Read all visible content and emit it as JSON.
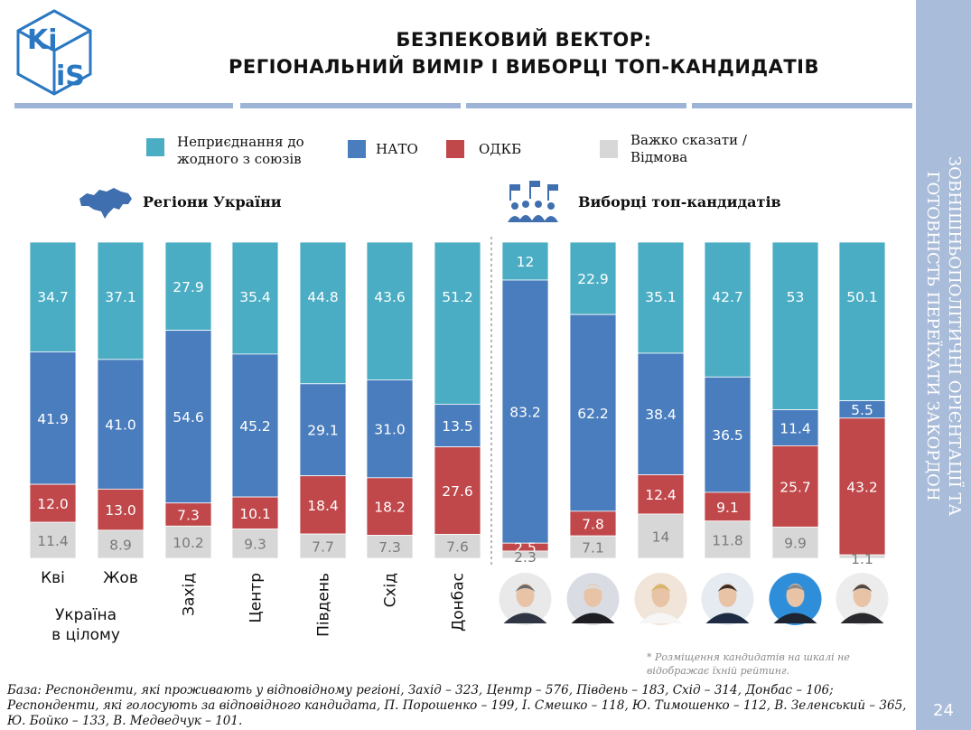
{
  "header": {
    "title_line1": "БЕЗПЕКОВИЙ ВЕКТОР:",
    "title_line2": "РЕГІОНАЛЬНИЙ ВИМІР І ВИБОРЦІ ТОП-КАНДИДАТІВ",
    "logo_text": "KIIS"
  },
  "sidebar": {
    "line1": "ЗОВНІШНЬОПОЛІТИЧНІ ОРІЄНТАЦІЇ ТА",
    "line2": "ГОТОВНІСТЬ ПЕРЕЇХАТИ ЗАКОРДОН",
    "page_number": "24"
  },
  "legend": {
    "none": "Неприєднання до\nжодного з союзів",
    "nato": "НАТО",
    "odkb": "ОДКБ",
    "dk": "Важко сказати /\nВідмова"
  },
  "sections": {
    "regions": "Регіони України",
    "voters": "Виборці топ-кандидатів"
  },
  "colors": {
    "none": "#4badc3",
    "nato": "#4a7dbd",
    "odkb": "#c0474a",
    "dk": "#d7d7d7",
    "sidebar": "#a9bcd9"
  },
  "chart_data": {
    "type": "bar",
    "stacked": true,
    "normalized_to": 100,
    "categories": [
      "Кві",
      "Жов",
      "Захід",
      "Центр",
      "Південь",
      "Схід",
      "Донбас",
      "",
      "",
      "",
      "",
      "",
      ""
    ],
    "group_label": "Україна в цілому",
    "series": [
      {
        "name": "Неприєднання до жодного з союзів",
        "values": [
          34.7,
          37.1,
          27.9,
          35.4,
          44.8,
          43.6,
          51.2,
          12,
          22.9,
          35.1,
          42.7,
          53,
          50.1
        ]
      },
      {
        "name": "НАТО",
        "values": [
          41.9,
          41.0,
          54.6,
          45.2,
          29.1,
          31.0,
          13.5,
          83.2,
          62.2,
          38.4,
          36.5,
          11.4,
          5.5
        ]
      },
      {
        "name": "ОДКБ",
        "values": [
          12.0,
          13.0,
          7.3,
          10.1,
          18.4,
          18.2,
          27.6,
          2.5,
          7.8,
          12.4,
          9.1,
          25.7,
          43.2
        ]
      },
      {
        "name": "Важко сказати / Відмова",
        "values": [
          11.4,
          8.9,
          10.2,
          9.3,
          7.7,
          7.3,
          7.6,
          2.3,
          7.1,
          14,
          11.8,
          9.9,
          1.1
        ]
      }
    ],
    "labels": [
      [
        "34.7",
        "41.9",
        "12.0",
        "11.4"
      ],
      [
        "37.1",
        "41.0",
        "13.0",
        "8.9"
      ],
      [
        "27.9",
        "54.6",
        "7.3",
        "10.2"
      ],
      [
        "35.4",
        "45.2",
        "10.1",
        "9.3"
      ],
      [
        "44.8",
        "29.1",
        "18.4",
        "7.7"
      ],
      [
        "43.6",
        "31.0",
        "18.2",
        "7.3"
      ],
      [
        "51.2",
        "13.5",
        "27.6",
        "7.6"
      ],
      [
        "12",
        "83.2",
        "2.5",
        "2.3"
      ],
      [
        "22.9",
        "62.2",
        "7.8",
        "7.1"
      ],
      [
        "35.1",
        "38.4",
        "12.4",
        "14"
      ],
      [
        "42.7",
        "36.5",
        "9.1",
        "11.8"
      ],
      [
        "53",
        "11.4",
        "25.7",
        "9.9"
      ],
      [
        "50.1",
        "5.5",
        "43.2",
        "1.1"
      ]
    ]
  },
  "footnote": "* Розміщення кандидатів на шкалі не\nвідображає їхній рейтинг.",
  "base_text": "База: Респонденти, які проживають у відповідному регіоні, Захід – 323, Центр – 576, Південь – 183, Схід – 314, Донбас – 106; Респонденти, які голосують за відповідного кандидата, П. Порошенко – 199, І. Смешко – 118, Ю. Тимошенко – 112, В. Зеленський – 365, Ю. Бойко – 133, В. Медведчук – 101."
}
